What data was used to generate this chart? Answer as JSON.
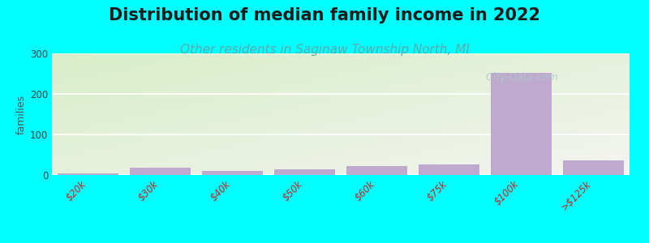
{
  "title": "Distribution of median family income in 2022",
  "subtitle": "Other residents in Saginaw Township North, MI",
  "categories": [
    "$20k",
    "$30k",
    "$40k",
    "$50k",
    "$60k",
    "$75k",
    "$100k",
    ">$125k"
  ],
  "values": [
    5,
    18,
    10,
    15,
    22,
    26,
    253,
    37
  ],
  "bar_color": "#b8a0cc",
  "bg_color": "#00ffff",
  "plot_bg_green": "#d8eec8",
  "plot_bg_white": "#f4f4f0",
  "ylabel": "families",
  "ylim": [
    0,
    300
  ],
  "yticks": [
    0,
    100,
    200,
    300
  ],
  "title_fontsize": 15,
  "subtitle_fontsize": 11,
  "subtitle_color": "#5aabaa",
  "watermark": "  City-Data.com",
  "watermark_color": "#b0c8cc"
}
